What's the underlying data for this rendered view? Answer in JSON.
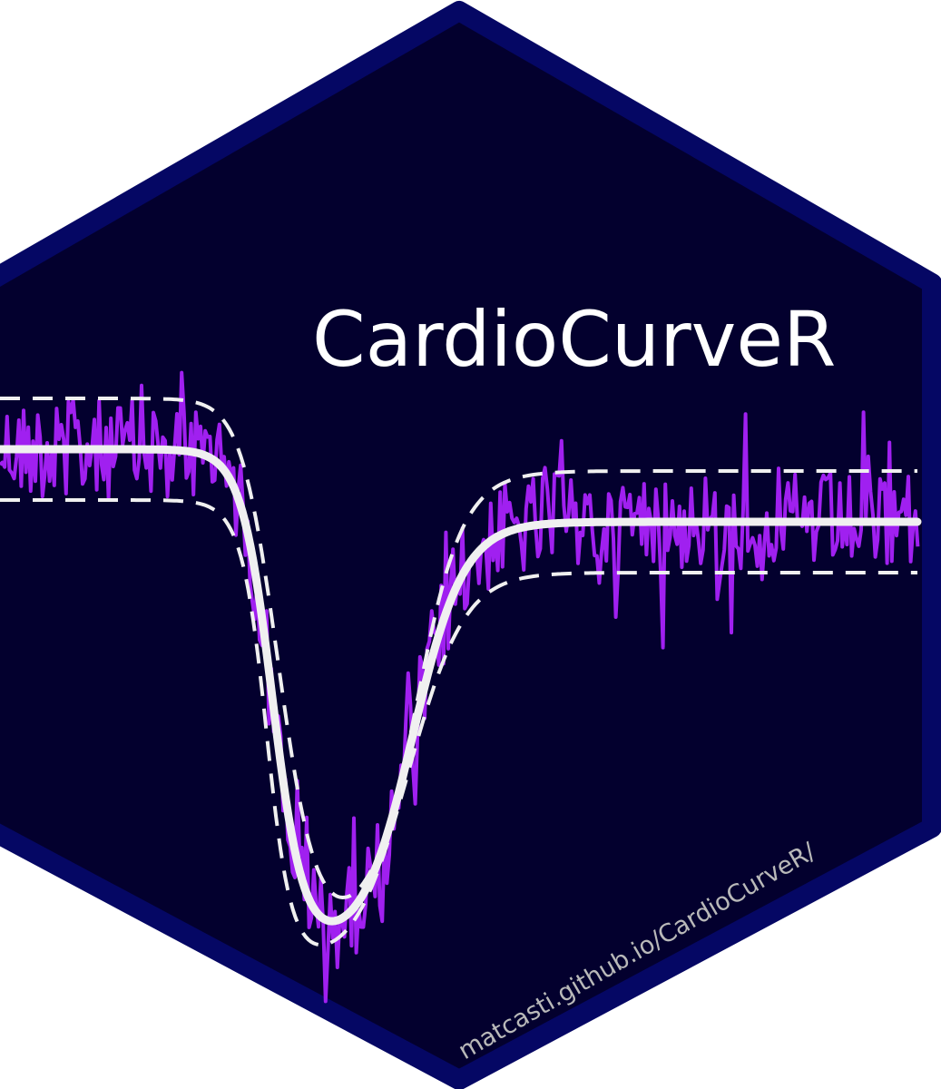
{
  "badge": {
    "title": "CardioCurveR",
    "url": "matcasti.github.io/CardioCurveR/"
  },
  "colors": {
    "background": "#ffffff",
    "hex_fill": "#03002e",
    "hex_border": "#050764",
    "signal": "#a020f0",
    "fit_curve": "#f0f0f0",
    "band": "#f0f0f0",
    "title_text": "#ffffff",
    "url_text": "#b9b9b9"
  },
  "icons": [
    "hexagon-badge"
  ]
}
